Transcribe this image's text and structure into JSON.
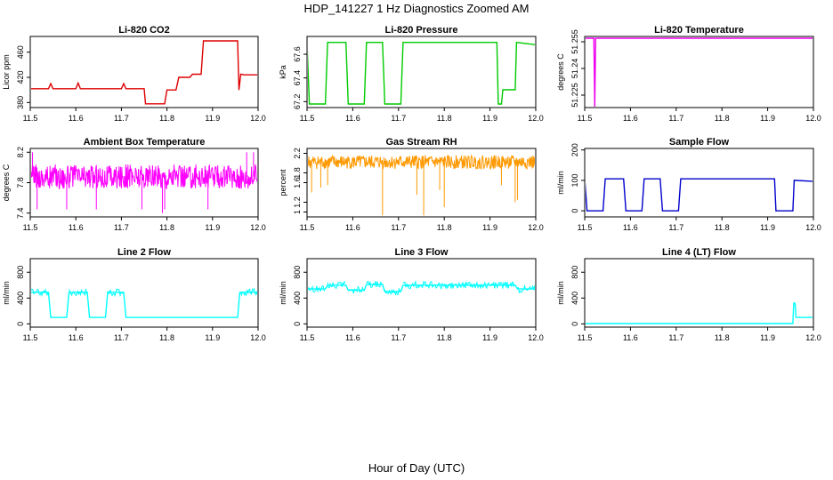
{
  "figure": {
    "title": "HDP_141227  1 Hz Diagnostics Zoomed AM",
    "xlabel": "Hour of Day (UTC)"
  },
  "chart_data": [
    {
      "type": "line",
      "title": "Li-820 CO2",
      "ylabel": "Licor ppm",
      "color": "#dd0000",
      "xlim": [
        11.5,
        12.0
      ],
      "ylim": [
        372,
        485
      ],
      "xticks": [
        11.5,
        11.6,
        11.7,
        11.8,
        11.9,
        12.0
      ],
      "yticks": [
        380,
        420,
        460
      ],
      "series": [
        {
          "x": [
            11.5,
            11.54,
            11.545,
            11.55,
            11.6,
            11.605,
            11.61,
            11.7,
            11.705,
            11.71,
            11.75,
            11.753,
            11.795,
            11.8,
            11.82,
            11.826,
            11.85,
            11.856,
            11.875,
            11.88,
            11.955,
            11.958,
            11.962,
            11.97,
            12.0
          ],
          "y": [
            402,
            402,
            410,
            402,
            402,
            411,
            402,
            402,
            410,
            402,
            402,
            378,
            378,
            400,
            400,
            420,
            420,
            425,
            425,
            478,
            478,
            400,
            425,
            424,
            424
          ]
        }
      ]
    },
    {
      "type": "line",
      "title": "Li-820 Pressure",
      "ylabel": "kPa",
      "color": "#00cc00",
      "xlim": [
        11.5,
        12.0
      ],
      "ylim": [
        67.15,
        67.75
      ],
      "xticks": [
        11.5,
        11.6,
        11.7,
        11.8,
        11.9,
        12.0
      ],
      "yticks": [
        67.2,
        67.4,
        67.6
      ],
      "series": [
        {
          "x": [
            11.5,
            11.505,
            11.54,
            11.545,
            11.585,
            11.59,
            11.625,
            11.63,
            11.665,
            11.67,
            11.705,
            11.71,
            11.915,
            11.918,
            11.925,
            11.928,
            11.955,
            11.958,
            12.0
          ],
          "y": [
            67.7,
            67.18,
            67.18,
            67.7,
            67.7,
            67.18,
            67.18,
            67.7,
            67.7,
            67.18,
            67.18,
            67.7,
            67.7,
            67.18,
            67.18,
            67.3,
            67.3,
            67.7,
            67.68
          ]
        }
      ]
    },
    {
      "type": "line",
      "title": "Li-820 Temperature",
      "ylabel": "degrees C",
      "color": "#ee00ee",
      "xlim": [
        11.5,
        12.0
      ],
      "ylim": [
        51.218,
        51.258
      ],
      "xticks": [
        11.5,
        11.6,
        11.7,
        11.8,
        11.9,
        12.0
      ],
      "yticks": [
        51.225,
        51.24,
        51.255
      ],
      "series": [
        {
          "x": [
            11.5,
            11.52,
            11.522,
            11.524,
            12.0
          ],
          "y": [
            51.257,
            51.257,
            51.218,
            51.257,
            51.257
          ]
        }
      ]
    },
    {
      "type": "line",
      "title": "Ambient Box Temperature",
      "ylabel": "degrees C",
      "color": "#ff00ff",
      "xlim": [
        11.5,
        12.0
      ],
      "ylim": [
        7.35,
        8.25
      ],
      "xticks": [
        11.5,
        11.6,
        11.7,
        11.8,
        11.9,
        12.0
      ],
      "yticks": [
        7.4,
        7.8,
        8.2
      ],
      "series": [
        {
          "x": [
            11.5,
            12.0
          ],
          "y_center": 7.88,
          "y_spread": 0.16,
          "spikes_x": [
            11.505,
            11.515,
            11.58,
            11.645,
            11.745,
            11.79,
            11.795,
            11.89,
            11.975,
            11.99
          ],
          "spikes_y": [
            8.2,
            7.45,
            7.45,
            7.45,
            7.45,
            7.4,
            7.45,
            7.45,
            8.2,
            8.2
          ]
        }
      ]
    },
    {
      "type": "line",
      "title": "Gas Stream RH",
      "ylabel": "percent",
      "color": "#ff9900",
      "xlim": [
        11.5,
        12.0
      ],
      "ylim": [
        0.9,
        2.3
      ],
      "xticks": [
        11.5,
        11.6,
        11.7,
        11.8,
        11.9,
        12.0
      ],
      "yticks": [
        1.0,
        1.2,
        1.6,
        1.8,
        2.2
      ],
      "series": [
        {
          "x": [
            11.5,
            12.0
          ],
          "y_center": 2.02,
          "y_spread": 0.14,
          "spikes_x": [
            11.51,
            11.665,
            11.74,
            11.755,
            11.8,
            11.79,
            11.925,
            11.955,
            11.96,
            11.545,
            11.53
          ],
          "spikes_y": [
            1.4,
            0.93,
            1.35,
            0.93,
            1.1,
            1.45,
            1.55,
            1.2,
            1.25,
            1.55,
            1.5
          ]
        }
      ]
    },
    {
      "type": "line",
      "title": "Sample Flow",
      "ylabel": "ml/min",
      "color": "#0000cc",
      "xlim": [
        11.5,
        12.0
      ],
      "ylim": [
        -20,
        205
      ],
      "xticks": [
        11.5,
        11.6,
        11.7,
        11.8,
        11.9,
        12.0
      ],
      "yticks": [
        0,
        100,
        200
      ],
      "series": [
        {
          "x": [
            11.5,
            11.505,
            11.54,
            11.545,
            11.585,
            11.59,
            11.625,
            11.63,
            11.665,
            11.67,
            11.705,
            11.71,
            11.915,
            11.918,
            11.955,
            11.958,
            12.0
          ],
          "y": [
            105,
            0,
            0,
            105,
            105,
            0,
            0,
            105,
            105,
            0,
            0,
            105,
            105,
            0,
            0,
            100,
            97
          ]
        }
      ]
    },
    {
      "type": "line",
      "title": "Line 2 Flow",
      "ylabel": "ml/min",
      "color": "#00ffff",
      "xlim": [
        11.5,
        12.0
      ],
      "ylim": [
        -50,
        1010
      ],
      "xticks": [
        11.5,
        11.6,
        11.7,
        11.8,
        11.9,
        12.0
      ],
      "yticks": [
        0,
        400,
        800
      ],
      "series": [
        {
          "x": [
            11.5,
            11.54,
            11.545,
            11.58,
            11.585,
            11.625,
            11.63,
            11.665,
            11.67,
            11.705,
            11.71,
            11.955,
            11.96,
            12.0
          ],
          "y": [
            490,
            490,
            100,
            100,
            490,
            490,
            100,
            100,
            490,
            490,
            100,
            100,
            490,
            490
          ]
        }
      ]
    },
    {
      "type": "line",
      "title": "Line 3 Flow",
      "ylabel": "ml/min",
      "color": "#00ffff",
      "xlim": [
        11.5,
        12.0
      ],
      "ylim": [
        -50,
        1010
      ],
      "xticks": [
        11.5,
        11.6,
        11.7,
        11.8,
        11.9,
        12.0
      ],
      "yticks": [
        0,
        400,
        800
      ],
      "series": [
        {
          "x": [
            11.5,
            11.54,
            11.545,
            11.585,
            11.59,
            11.625,
            11.63,
            11.665,
            11.67,
            11.705,
            11.71,
            11.955,
            11.96,
            12.0
          ],
          "y": [
            540,
            540,
            600,
            600,
            520,
            520,
            610,
            610,
            500,
            500,
            600,
            600,
            540,
            540
          ]
        }
      ]
    },
    {
      "type": "line",
      "title": "Line 4 (LT) Flow",
      "ylabel": "ml/min",
      "color": "#00ffff",
      "xlim": [
        11.5,
        12.0
      ],
      "ylim": [
        -50,
        1010
      ],
      "xticks": [
        11.5,
        11.6,
        11.7,
        11.8,
        11.9,
        12.0
      ],
      "yticks": [
        0,
        400,
        800
      ],
      "series": [
        {
          "x": [
            11.5,
            11.955,
            11.957,
            11.96,
            11.962,
            12.0
          ],
          "y": [
            5,
            5,
            320,
            320,
            100,
            100
          ]
        }
      ]
    }
  ]
}
